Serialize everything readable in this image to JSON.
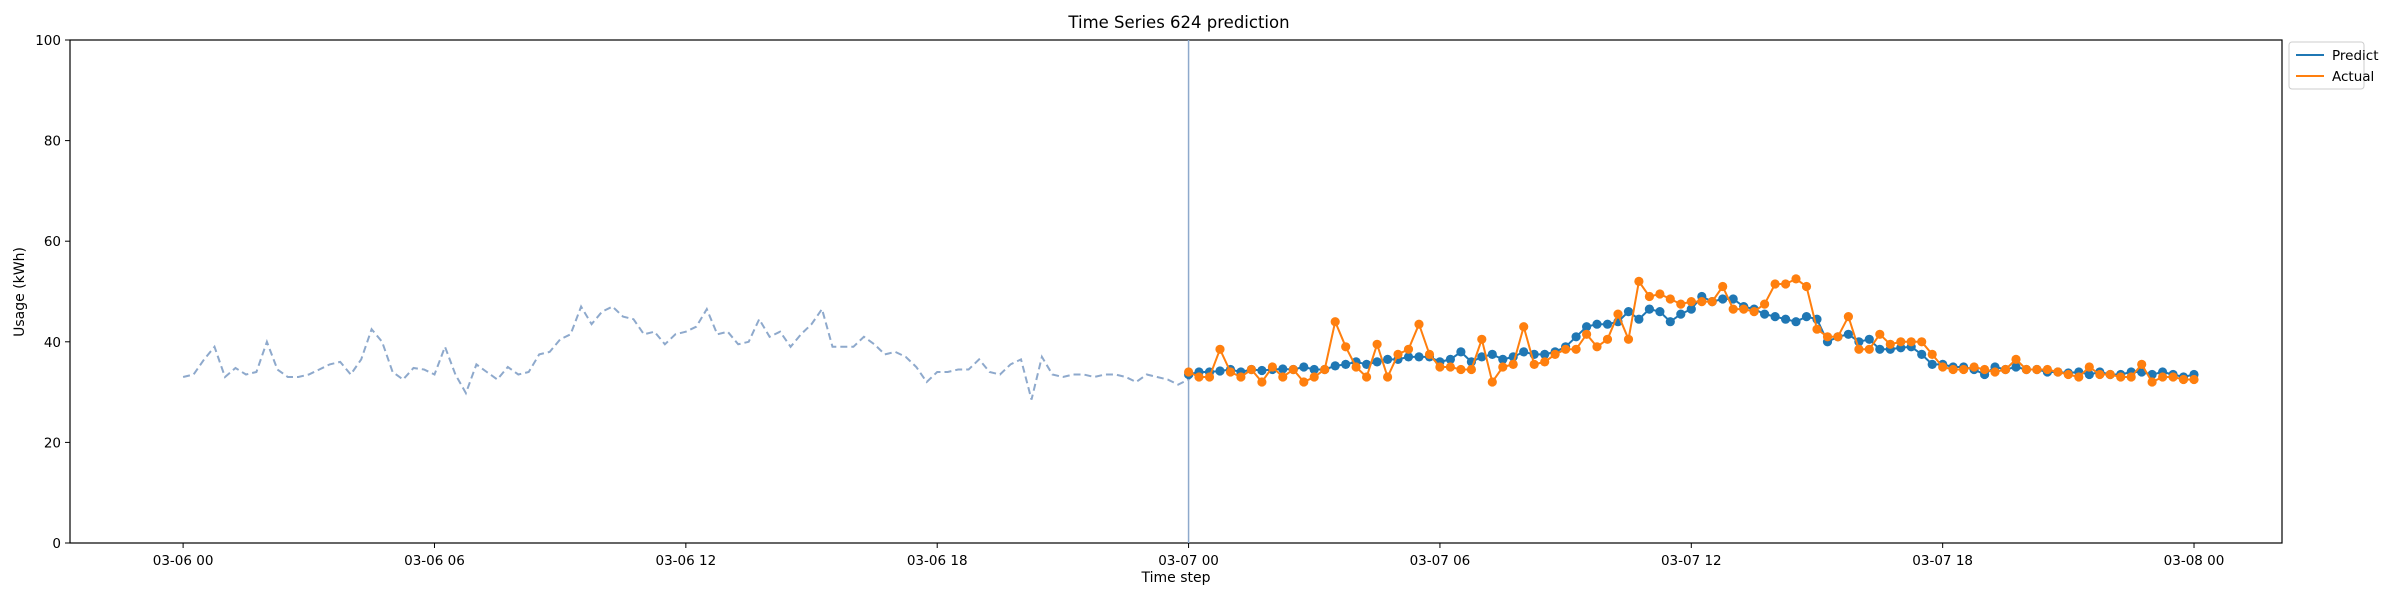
{
  "chart_data": {
    "type": "line",
    "title": "Time Series 624 prediction",
    "xlabel": "Time step",
    "ylabel": "Usage (kWh)",
    "ylim": [
      0,
      100
    ],
    "yticks": [
      0,
      20,
      40,
      60,
      80,
      100
    ],
    "xlim_hours": [
      -2.7,
      50.1
    ],
    "xticks": [
      {
        "hour": 0,
        "label": "03-06 00"
      },
      {
        "hour": 6,
        "label": "03-06 06"
      },
      {
        "hour": 12,
        "label": "03-06 12"
      },
      {
        "hour": 18,
        "label": "03-06 18"
      },
      {
        "hour": 24,
        "label": "03-07 00"
      },
      {
        "hour": 30,
        "label": "03-07 06"
      },
      {
        "hour": 36,
        "label": "03-07 12"
      },
      {
        "hour": 42,
        "label": "03-07 18"
      },
      {
        "hour": 48,
        "label": "03-08 00"
      }
    ],
    "x_start": "2024-03-06 00:00",
    "step_minutes": 15,
    "split_at_hour": 24,
    "grid": false,
    "legend_position": "upper right, outside plot",
    "colors": {
      "history": "#8ea9cc",
      "predict": "#1f77b4",
      "actual": "#ff7f0e",
      "split_line": "#8ea9cc"
    },
    "series": [
      {
        "name": "",
        "style": "dashed",
        "values": [
          33.0,
          33.5,
          36.5,
          39.0,
          33.0,
          34.8,
          33.5,
          34.0,
          40.0,
          34.5,
          33.0,
          33.0,
          33.5,
          34.5,
          35.5,
          36.0,
          33.5,
          36.5,
          42.5,
          40.0,
          34.0,
          32.5,
          34.8,
          34.5,
          33.5,
          39.0,
          33.5,
          29.8,
          35.5,
          34.0,
          32.5,
          35.0,
          33.5,
          34.0,
          37.5,
          38.0,
          40.5,
          41.5,
          47.0,
          43.5,
          46.0,
          47.0,
          45.0,
          44.5,
          41.5,
          42.0,
          39.5,
          41.5,
          42.0,
          43.0,
          46.5,
          41.5,
          42.0,
          39.5,
          40.0,
          44.5,
          41.0,
          42.0,
          39.0,
          41.5,
          43.5,
          46.5,
          39.0,
          39.0,
          39.0,
          41.0,
          39.5,
          37.5,
          38.0,
          37.0,
          35.0,
          32.0,
          34.0,
          34.0,
          34.5,
          34.5,
          36.5,
          34.0,
          33.5,
          35.5,
          36.5,
          28.5,
          37.0,
          33.5,
          33.0,
          33.5,
          33.5,
          33.0,
          33.5,
          33.5,
          33.0,
          32.0,
          33.5,
          33.0,
          32.5,
          31.5,
          32.5,
          34.5,
          34.0
        ]
      },
      {
        "name": "Predict",
        "style": "solid-markers",
        "values": [
          33.5,
          34.0,
          34.0,
          34.2,
          34.5,
          34.0,
          34.5,
          34.3,
          34.5,
          34.6,
          34.5,
          35.0,
          34.5,
          34.5,
          35.2,
          35.5,
          36.0,
          35.5,
          36.0,
          36.5,
          36.5,
          37.0,
          37.0,
          37.0,
          36.0,
          36.5,
          38.0,
          36.0,
          37.0,
          37.5,
          36.5,
          37.0,
          38.0,
          37.5,
          37.5,
          38.0,
          39.0,
          41.0,
          43.0,
          43.5,
          43.5,
          44.0,
          46.0,
          44.5,
          46.5,
          46.0,
          44.0,
          45.5,
          46.5,
          49.0,
          48.0,
          48.5,
          48.5,
          47.0,
          46.5,
          45.5,
          45.0,
          44.5,
          44.0,
          45.0,
          44.5,
          40.0,
          41.0,
          41.5,
          40.0,
          40.5,
          38.5,
          38.5,
          38.8,
          39.0,
          37.5,
          35.5,
          35.5,
          35.0,
          35.0,
          34.5,
          33.5,
          35.0,
          34.5,
          35.0,
          34.5,
          34.5,
          34.0,
          34.0,
          33.8,
          34.0,
          33.5,
          34.0,
          33.5,
          33.5,
          34.0,
          34.0,
          33.5,
          34.0,
          33.5,
          33.0,
          33.5
        ]
      },
      {
        "name": "Actual",
        "style": "solid-markers",
        "values": [
          34.0,
          33.0,
          33.0,
          38.5,
          34.0,
          33.0,
          34.5,
          32.0,
          35.0,
          33.0,
          34.5,
          32.0,
          33.0,
          34.5,
          44.0,
          39.0,
          35.0,
          33.0,
          39.5,
          33.0,
          37.5,
          38.5,
          43.5,
          37.5,
          35.0,
          35.0,
          34.5,
          34.5,
          40.5,
          32.0,
          35.0,
          35.5,
          43.0,
          35.5,
          36.0,
          37.5,
          38.5,
          38.5,
          41.5,
          39.0,
          40.5,
          45.5,
          40.5,
          52.0,
          49.0,
          49.5,
          48.5,
          47.5,
          48.0,
          48.0,
          48.0,
          51.0,
          46.5,
          46.5,
          46.0,
          47.5,
          51.5,
          51.5,
          52.5,
          51.0,
          42.5,
          41.0,
          41.0,
          45.0,
          38.5,
          38.5,
          41.5,
          39.5,
          40.0,
          40.0,
          40.0,
          37.5,
          35.0,
          34.5,
          34.5,
          35.0,
          34.5,
          34.0,
          34.5,
          36.5,
          34.5,
          34.5,
          34.5,
          34.0,
          33.5,
          33.0,
          35.0,
          33.5,
          33.5,
          33.0,
          33.0,
          35.5,
          32.0,
          33.0,
          33.0,
          32.5,
          32.5
        ]
      }
    ]
  }
}
